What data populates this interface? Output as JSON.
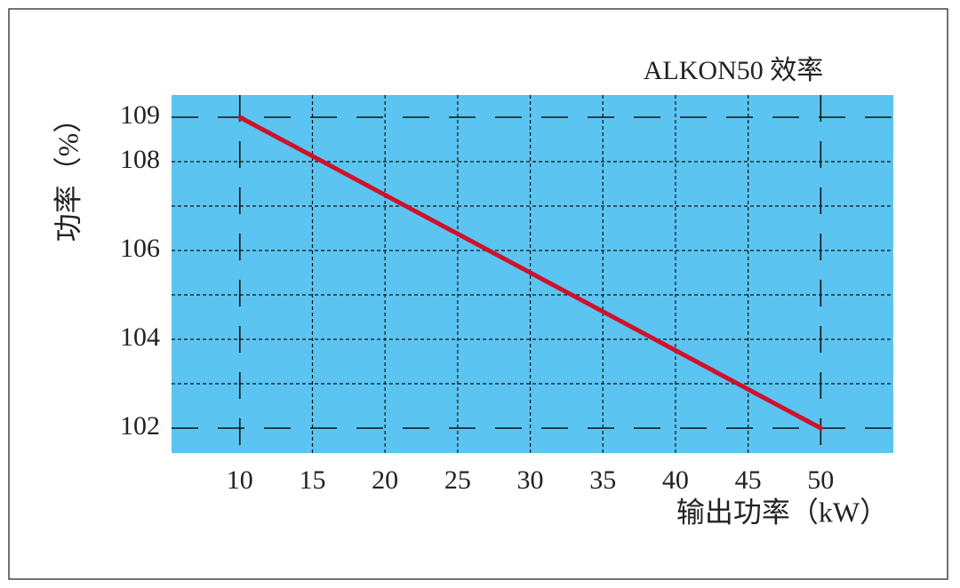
{
  "chart_data": {
    "type": "line",
    "title": "ALKON50 效率",
    "x_label": "输出功率（kW）",
    "y_label": "功率（%）",
    "x": [
      10,
      50
    ],
    "series": [
      {
        "name": "ALKON50",
        "color": "#d0112b",
        "values": [
          109,
          102
        ]
      }
    ],
    "xlim": [
      5.3,
      55
    ],
    "ylim": [
      101.44,
      109.5
    ],
    "xticks": [
      10,
      15,
      20,
      25,
      30,
      35,
      40,
      45,
      50
    ],
    "yticks": [
      102,
      104,
      106,
      108,
      109
    ],
    "minor_yticks": [
      103,
      105,
      107
    ],
    "background": "#5bc4f0",
    "grid": true
  }
}
